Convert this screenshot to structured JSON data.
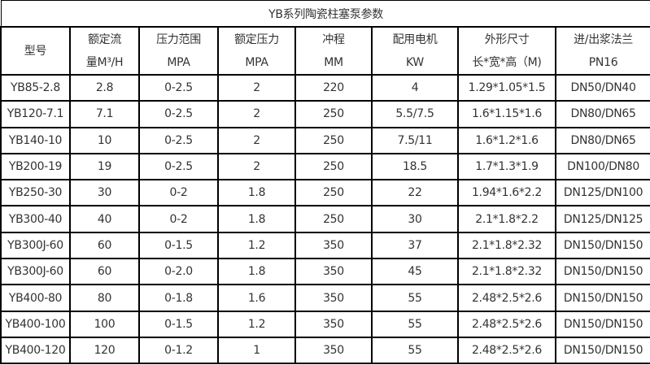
{
  "title": "YB系列陶瓷柱塞泵参数",
  "headers": [
    {
      "line1": "型号",
      "line2": ""
    },
    {
      "line1": "额定流",
      "line2": "量M³/H"
    },
    {
      "line1": "压力范围",
      "line2": "MPA"
    },
    {
      "line1": "额定压力",
      "line2": "MPA"
    },
    {
      "line1": "冲程",
      "line2": "MM"
    },
    {
      "line1": "配用电机",
      "line2": "KW"
    },
    {
      "line1": "外形尺寸",
      "line2": "长*宽*高（M)"
    },
    {
      "line1": "进/出浆法兰",
      "line2": "PN16"
    }
  ],
  "rows": [
    [
      "YB85-2.8",
      "2.8",
      "0-2.5",
      "2",
      "220",
      "4",
      "1.29*1.05*1.5",
      "DN50/DN40"
    ],
    [
      "YB120-7.1",
      "7.1",
      "0-2.5",
      "2",
      "250",
      "5.5/7.5",
      "1.6*1.15*1.6",
      "DN80/DN65"
    ],
    [
      "YB140-10",
      "10",
      "0-2.5",
      "2",
      "250",
      "7.5/11",
      "1.6*1.2*1.6",
      "DN80/DN65"
    ],
    [
      "YB200-19",
      "19",
      "0-2.5",
      "2",
      "250",
      "18.5",
      "1.7*1.3*1.9",
      "DN100/DN80"
    ],
    [
      "YB250-30",
      "30",
      "0-2",
      "1.8",
      "250",
      "22",
      "1.94*1.6*2.2",
      "DN125/DN100"
    ],
    [
      "YB300-40",
      "40",
      "0-2",
      "1.8",
      "250",
      "30",
      "2.1*1.8*2.2",
      "DN125/DN125"
    ],
    [
      "YB300J-60",
      "60",
      "0-1.5",
      "1.2",
      "350",
      "37",
      "2.1*1.8*2.32",
      "DN150/DN150"
    ],
    [
      "YB300J-60",
      "60",
      "0-2.0",
      "1.8",
      "350",
      "45",
      "2.1*1.8*2.32",
      "DN150/DN150"
    ],
    [
      "YB400-80",
      "80",
      "0-1.8",
      "1.6",
      "350",
      "55",
      "2.48*2.5*2.6",
      "DN150/DN150"
    ],
    [
      "YB400-100",
      "100",
      "0-1.5",
      "1.2",
      "350",
      "55",
      "2.48*2.5*2.6",
      "DN150/DN150"
    ],
    [
      "YB400-120",
      "120",
      "0-1.2",
      "1",
      "350",
      "55",
      "2.48*2.5*2.6",
      "DN150/DN150"
    ]
  ]
}
